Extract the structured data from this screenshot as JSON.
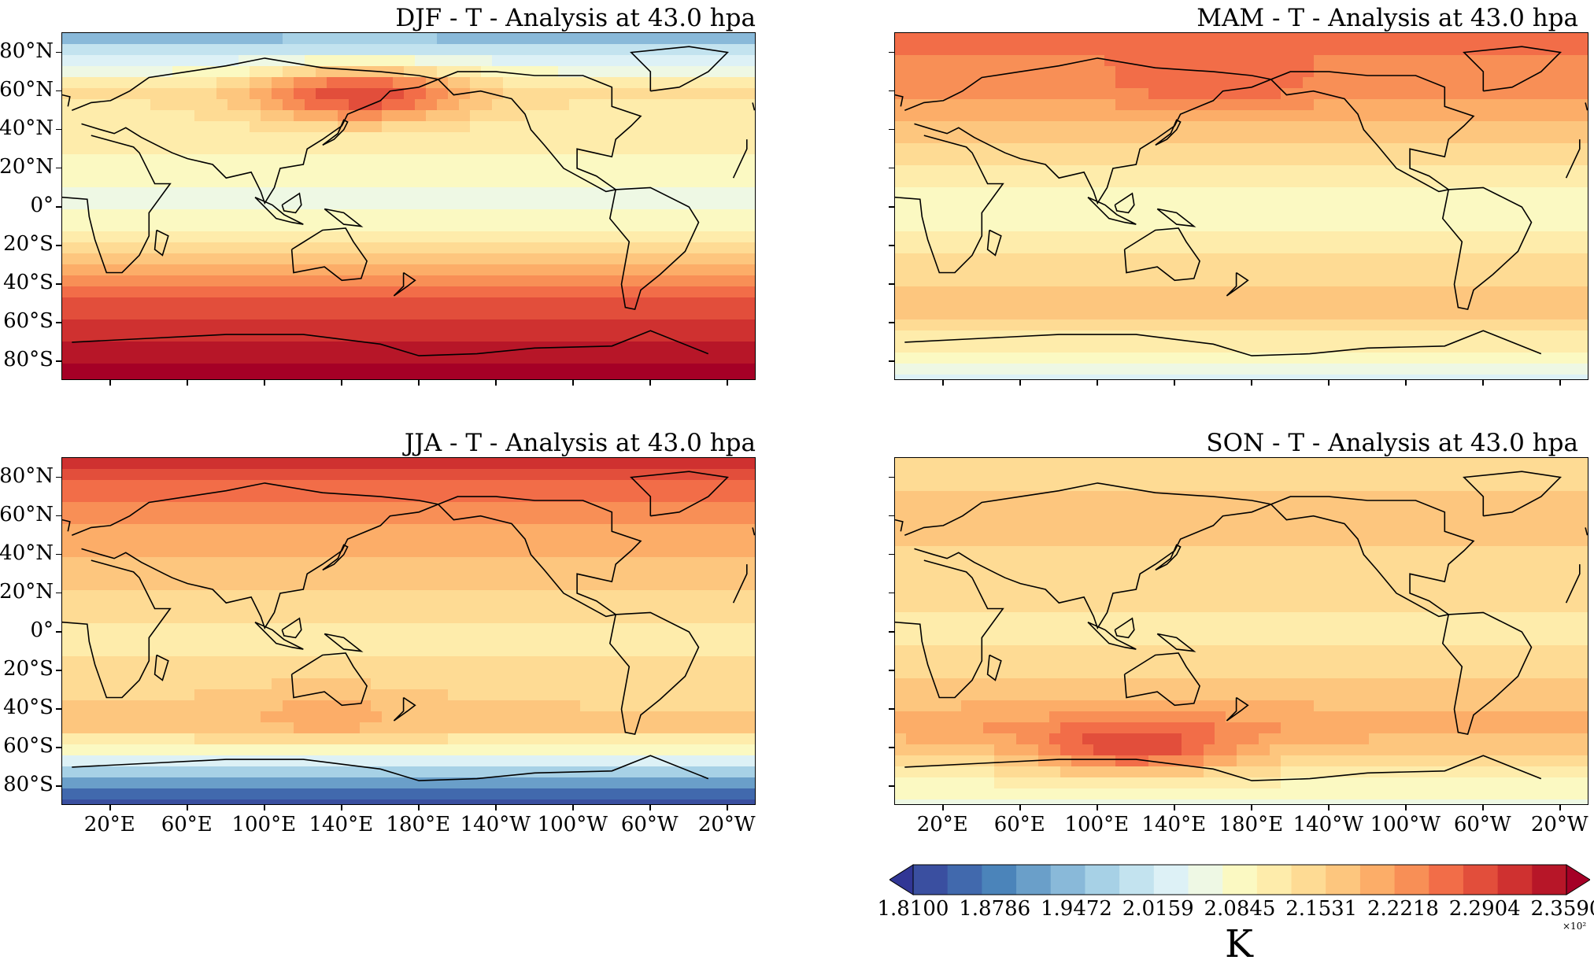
{
  "panels": [
    {
      "id": "djf",
      "title": "DJF - T - Analysis at 43.0 hpa",
      "season": "DJF",
      "pattern": {
        "north_polar": 0.25,
        "tropics": 0.45,
        "midlat_north": 0.58,
        "south_mid": 0.82,
        "south_polar": 0.98,
        "anomaly": {
          "lon": 150,
          "lat": 58,
          "value": 0.85
        }
      }
    },
    {
      "id": "mam",
      "title": "MAM - T - Analysis at 43.0 hpa",
      "season": "MAM",
      "pattern": {
        "north_polar": 0.78,
        "tropics": 0.47,
        "midlat_north": 0.72,
        "south_mid": 0.66,
        "south_polar": 0.42,
        "anomaly": {
          "lon": 160,
          "lat": 65,
          "value": 0.8
        }
      }
    },
    {
      "id": "jja",
      "title": "JJA - T - Analysis at 43.0 hpa",
      "season": "JJA",
      "pattern": {
        "north_polar": 0.88,
        "tropics": 0.55,
        "midlat_north": 0.72,
        "south_mid": 0.64,
        "south_polar": 0.05,
        "anomaly": {
          "lon": 130,
          "lat": -42,
          "value": 0.68
        }
      }
    },
    {
      "id": "son",
      "title": "SON - T - Analysis at 43.0 hpa",
      "season": "SON",
      "pattern": {
        "north_polar": 0.6,
        "tropics": 0.55,
        "midlat_north": 0.64,
        "south_mid": 0.7,
        "south_polar": 0.44,
        "anomaly": {
          "lon": 120,
          "lat": -58,
          "value": 0.85
        }
      }
    }
  ],
  "lat_ticks": [
    "80°N",
    "60°N",
    "40°N",
    "20°N",
    "0°",
    "20°S",
    "40°S",
    "60°S",
    "80°S"
  ],
  "lat_values": [
    80,
    60,
    40,
    20,
    0,
    -20,
    -40,
    -60,
    -80
  ],
  "lon_ticks": [
    "20°E",
    "60°E",
    "100°E",
    "140°E",
    "180°E",
    "140°W",
    "100°W",
    "60°W",
    "20°W"
  ],
  "lon_values": [
    20,
    60,
    100,
    140,
    180,
    220,
    260,
    300,
    340
  ],
  "colorbar": {
    "tick_labels": [
      "1.8100",
      "1.8786",
      "1.9472",
      "2.0159",
      "2.0845",
      "2.1531",
      "2.2218",
      "2.2904",
      "2.3590"
    ],
    "units": "K",
    "multiplier": "×10²",
    "colors": [
      "#313695",
      "#3a4fa0",
      "#4169ad",
      "#4b84ba",
      "#6a9fc9",
      "#89b9d9",
      "#a7d1e6",
      "#c3e3ef",
      "#ddf1f6",
      "#eef8e4",
      "#fbf9c2",
      "#feecab",
      "#fedb94",
      "#fdc67e",
      "#fcad68",
      "#f88f56",
      "#f26d48",
      "#e24e3b",
      "#cf3130",
      "#b71628",
      "#a50026"
    ]
  }
}
